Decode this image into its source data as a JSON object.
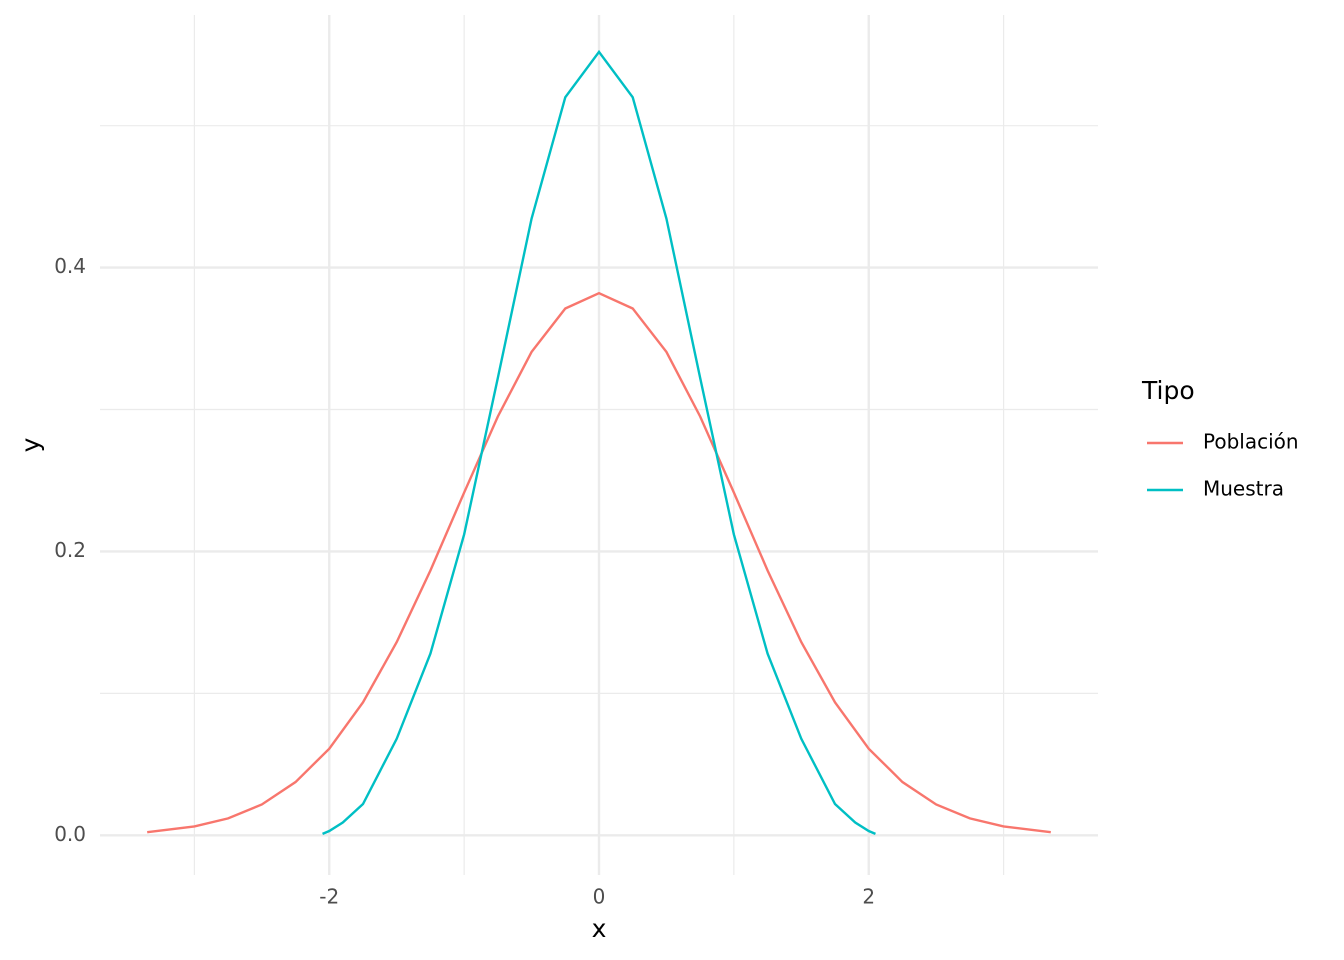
{
  "chart_data": {
    "type": "line",
    "x_label": "x",
    "y_label": "y",
    "legend_title": "Tipo",
    "legend_position": "right",
    "xlim": [
      -3.7,
      3.7
    ],
    "ylim": [
      -0.028,
      0.578
    ],
    "xticks": [
      -2,
      0,
      2
    ],
    "yticks": [
      {
        "value": 0,
        "label": "0.0"
      },
      0.2,
      0.4
    ],
    "x_minor_ticks": [
      -3,
      -1,
      1,
      3
    ],
    "y_minor_ticks": [
      0.1,
      0.3,
      0.5
    ],
    "grid": true,
    "series": [
      {
        "name": "Población",
        "color": "#F8766D",
        "x": [
          -3.35,
          -3,
          -2.75,
          -2.5,
          -2.25,
          -2,
          -1.75,
          -1.5,
          -1.25,
          -1,
          -0.75,
          -0.5,
          -0.25,
          0,
          0.25,
          0.5,
          0.75,
          1,
          1.25,
          1.5,
          1.75,
          2,
          2.25,
          2.5,
          2.75,
          3,
          3.35
        ],
        "values": [
          0.0022,
          0.0062,
          0.0119,
          0.0217,
          0.0375,
          0.061,
          0.0937,
          0.1361,
          0.1866,
          0.2415,
          0.2951,
          0.3406,
          0.3712,
          0.382,
          0.3712,
          0.3406,
          0.2951,
          0.2415,
          0.1866,
          0.1361,
          0.0937,
          0.061,
          0.0375,
          0.0217,
          0.0119,
          0.0062,
          0.0022
        ]
      },
      {
        "name": "Muestra",
        "color": "#00BFC4",
        "x": [
          -2.05,
          -2,
          -1.9,
          -1.75,
          -1.5,
          -1.25,
          -1,
          -0.75,
          -0.5,
          -0.25,
          0,
          0.25,
          0.5,
          0.75,
          1,
          1.25,
          1.5,
          1.75,
          1.9,
          2,
          2.05
        ],
        "values": [
          0.001,
          0.003,
          0.009,
          0.022,
          0.068,
          0.128,
          0.212,
          0.3223,
          0.4345,
          0.52,
          0.552,
          0.52,
          0.4345,
          0.3223,
          0.212,
          0.128,
          0.068,
          0.022,
          0.009,
          0.003,
          0.001
        ]
      }
    ]
  }
}
